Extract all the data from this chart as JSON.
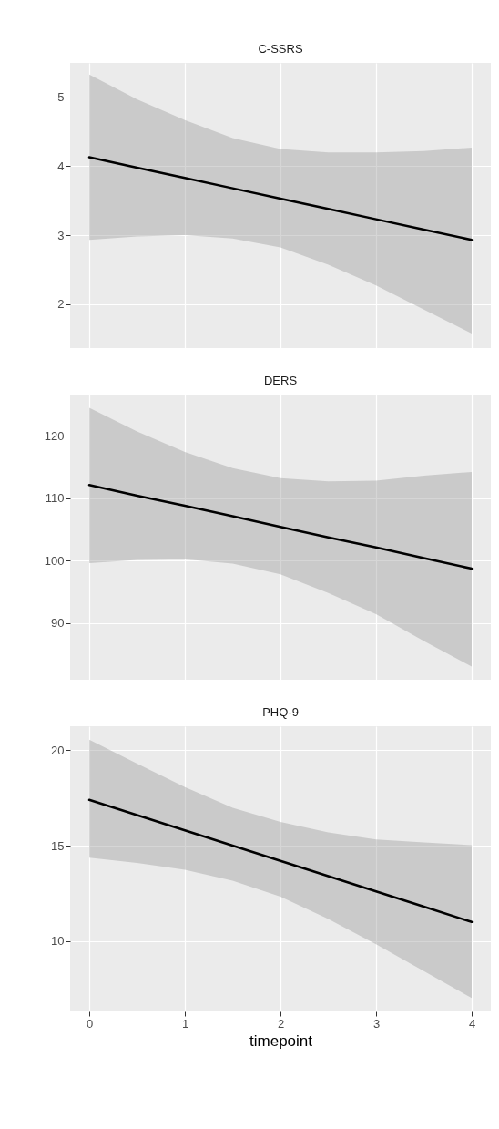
{
  "chart_data": [
    {
      "type": "line",
      "title": "C-SSRS",
      "x": [
        0,
        0.5,
        1,
        1.5,
        2,
        2.5,
        3,
        3.5,
        4
      ],
      "xlim": [
        -0.2,
        4.2
      ],
      "xticks": [
        0,
        1,
        2,
        3,
        4
      ],
      "ylim": [
        1.36,
        5.5
      ],
      "yticks": [
        2,
        3,
        4,
        5
      ],
      "grid": true,
      "tick_labels": "y",
      "series": [
        {
          "color": "#000000",
          "values": [
            4.13,
            3.98,
            3.83,
            3.68,
            3.53,
            3.38,
            3.23,
            3.08,
            2.93
          ],
          "lower": [
            2.93,
            2.98,
            3.0,
            2.95,
            2.82,
            2.57,
            2.27,
            1.92,
            1.57
          ],
          "upper": [
            5.33,
            4.97,
            4.67,
            4.41,
            4.25,
            4.2,
            4.2,
            4.22,
            4.27
          ]
        }
      ]
    },
    {
      "type": "line",
      "title": "DERS",
      "x": [
        0,
        0.5,
        1,
        1.5,
        2,
        2.5,
        3,
        3.5,
        4
      ],
      "xlim": [
        -0.2,
        4.2
      ],
      "xticks": [
        0,
        1,
        2,
        3,
        4
      ],
      "ylim": [
        80.9,
        126.6
      ],
      "yticks": [
        90,
        100,
        110,
        120
      ],
      "grid": true,
      "tick_labels": "y",
      "series": [
        {
          "color": "#000000",
          "values": [
            112.1,
            110.4,
            108.8,
            107.1,
            105.4,
            103.7,
            102.1,
            100.4,
            98.7
          ],
          "lower": [
            99.6,
            100.1,
            100.2,
            99.5,
            97.8,
            94.8,
            91.4,
            87.1,
            83.0
          ],
          "upper": [
            124.5,
            120.7,
            117.4,
            114.8,
            113.2,
            112.7,
            112.8,
            113.6,
            114.2
          ]
        }
      ]
    },
    {
      "type": "line",
      "title": "PHQ-9",
      "xlabel": "timepoint",
      "x": [
        0,
        0.5,
        1,
        1.5,
        2,
        2.5,
        3,
        3.5,
        4
      ],
      "xlim": [
        -0.2,
        4.2
      ],
      "xticks": [
        0,
        1,
        2,
        3,
        4
      ],
      "ylim": [
        6.31,
        21.26
      ],
      "yticks": [
        10,
        15,
        20
      ],
      "grid": true,
      "series": [
        {
          "color": "#000000",
          "values": [
            17.4,
            16.6,
            15.8,
            15.0,
            14.2,
            13.4,
            12.6,
            11.8,
            11.0
          ],
          "lower": [
            14.37,
            14.09,
            13.74,
            13.16,
            12.33,
            11.16,
            9.83,
            8.42,
            7.01
          ],
          "upper": [
            20.55,
            19.3,
            18.07,
            16.99,
            16.25,
            15.7,
            15.33,
            15.17,
            15.03
          ]
        }
      ]
    }
  ]
}
